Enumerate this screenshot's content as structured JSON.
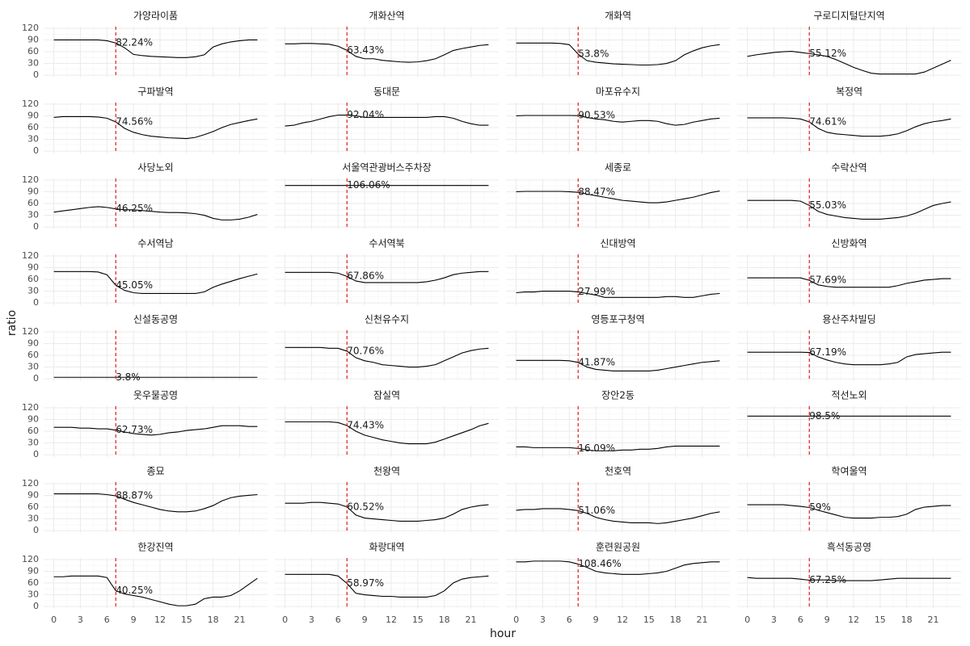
{
  "chart_data": {
    "type": "line",
    "x_label": "hour",
    "y_label": "ratio",
    "x": [
      0,
      1,
      2,
      3,
      4,
      5,
      6,
      7,
      8,
      9,
      10,
      11,
      12,
      13,
      14,
      15,
      16,
      17,
      18,
      19,
      20,
      21,
      22,
      23
    ],
    "xlim": [
      -1.15,
      24.15
    ],
    "xticks": [
      0,
      3,
      6,
      9,
      12,
      15,
      18,
      21
    ],
    "ylim": [
      -6,
      124
    ],
    "yticks": [
      0,
      30,
      60,
      90,
      120
    ],
    "grid": true,
    "line_color": "#000000",
    "vline": 7,
    "vline_color": "#e31a1c",
    "panels": [
      {
        "title": "가양라이품",
        "values": [
          90,
          90,
          90,
          90,
          90,
          90,
          88,
          82.24,
          70,
          53,
          50,
          48,
          47,
          46,
          45,
          45,
          47,
          52,
          72,
          80,
          85,
          88,
          90,
          90
        ],
        "label_value": 82.24,
        "label": "82.24%"
      },
      {
        "title": "개화산역",
        "values": [
          80,
          80,
          81,
          81,
          80,
          79,
          74,
          63.43,
          48,
          42,
          42,
          38,
          36,
          34,
          33,
          34,
          37,
          42,
          52,
          63,
          68,
          72,
          76,
          78
        ],
        "label_value": 63.43,
        "label": "63.43%"
      },
      {
        "title": "개화역",
        "values": [
          82,
          82,
          82,
          82,
          82,
          81,
          78,
          53.8,
          37,
          33,
          31,
          29,
          28,
          27,
          26,
          26,
          27,
          30,
          37,
          52,
          62,
          70,
          75,
          78
        ],
        "label_value": 53.8,
        "label": "53.8%"
      },
      {
        "title": "구로디지털단지역",
        "values": [
          48,
          52,
          55,
          58,
          60,
          61,
          58,
          55.12,
          52,
          48,
          40,
          30,
          20,
          12,
          5,
          3,
          3,
          3,
          3,
          3,
          8,
          18,
          28,
          38
        ],
        "label_value": 55.12,
        "label": "55.12%"
      },
      {
        "title": "구파발역",
        "values": [
          86,
          88,
          88,
          88,
          88,
          87,
          84,
          74.56,
          58,
          48,
          42,
          38,
          36,
          34,
          33,
          32,
          35,
          42,
          50,
          60,
          68,
          73,
          78,
          82
        ],
        "label_value": 74.56,
        "label": "74.56%"
      },
      {
        "title": "동대문",
        "values": [
          64,
          66,
          72,
          76,
          82,
          88,
          92,
          92.04,
          90,
          86,
          86,
          86,
          86,
          86,
          86,
          86,
          86,
          88,
          88,
          84,
          76,
          70,
          66,
          66
        ],
        "label_value": 92.04,
        "label": "92.04%"
      },
      {
        "title": "마포유수지",
        "values": [
          90,
          91,
          91,
          91,
          91,
          91,
          91,
          90.53,
          86,
          82,
          80,
          76,
          74,
          76,
          78,
          78,
          76,
          70,
          66,
          68,
          74,
          78,
          82,
          84
        ],
        "label_value": 90.53,
        "label": "90.53%"
      },
      {
        "title": "복정역",
        "values": [
          85,
          85,
          85,
          85,
          85,
          84,
          82,
          74.61,
          58,
          48,
          44,
          42,
          40,
          38,
          38,
          38,
          40,
          44,
          52,
          62,
          70,
          75,
          78,
          82
        ],
        "label_value": 74.61,
        "label": "74.61%"
      },
      {
        "title": "사당노외",
        "values": [
          38,
          41,
          44,
          47,
          50,
          52,
          50,
          46.25,
          44,
          44,
          42,
          40,
          38,
          37,
          37,
          36,
          34,
          30,
          22,
          18,
          18,
          20,
          25,
          32
        ],
        "label_value": 46.25,
        "label": "46.25%"
      },
      {
        "title": "서울역관광버스주차장",
        "values": [
          106.06,
          106.06,
          106.06,
          106.06,
          106.06,
          106.06,
          106.06,
          106.06,
          106.06,
          106.06,
          106.06,
          106.06,
          106.06,
          106.06,
          106.06,
          106.06,
          106.06,
          106.06,
          106.06,
          106.06,
          106.06,
          106.06,
          106.06,
          106.06
        ],
        "label_value": 106.06,
        "label": "106.06%"
      },
      {
        "title": "세종로",
        "values": [
          90,
          91,
          91,
          91,
          91,
          91,
          90,
          88.47,
          84,
          80,
          76,
          72,
          68,
          66,
          64,
          62,
          62,
          64,
          68,
          72,
          76,
          82,
          88,
          92
        ],
        "label_value": 88.47,
        "label": "88.47%"
      },
      {
        "title": "수락산역",
        "values": [
          68,
          68,
          68,
          68,
          68,
          68,
          66,
          55.03,
          40,
          32,
          28,
          24,
          22,
          20,
          20,
          20,
          22,
          24,
          28,
          35,
          45,
          55,
          60,
          64
        ],
        "label_value": 55.03,
        "label": "55.03%"
      },
      {
        "title": "수서역남",
        "values": [
          80,
          80,
          80,
          80,
          80,
          79,
          72,
          45.05,
          32,
          26,
          24,
          24,
          24,
          24,
          24,
          24,
          24,
          28,
          40,
          48,
          55,
          62,
          68,
          74
        ],
        "label_value": 45.05,
        "label": "45.05%"
      },
      {
        "title": "수서역북",
        "values": [
          78,
          78,
          78,
          78,
          78,
          78,
          76,
          67.86,
          56,
          52,
          52,
          52,
          52,
          52,
          52,
          52,
          54,
          58,
          64,
          72,
          76,
          78,
          80,
          80
        ],
        "label_value": 67.86,
        "label": "67.86%"
      },
      {
        "title": "신대방역",
        "values": [
          26,
          28,
          28,
          30,
          30,
          30,
          30,
          27.99,
          24,
          20,
          14,
          14,
          14,
          14,
          14,
          14,
          14,
          16,
          16,
          14,
          14,
          18,
          22,
          24
        ],
        "label_value": 27.99,
        "label": "27.99%"
      },
      {
        "title": "신방화역",
        "values": [
          64,
          64,
          64,
          64,
          64,
          64,
          64,
          57.69,
          46,
          42,
          40,
          40,
          40,
          40,
          40,
          40,
          40,
          44,
          50,
          54,
          58,
          60,
          62,
          62
        ],
        "label_value": 57.69,
        "label": "57.69%"
      },
      {
        "title": "신설동공영",
        "values": [
          3.8,
          3.8,
          3.8,
          3.8,
          3.8,
          3.8,
          3.8,
          3.8,
          3.8,
          3.8,
          3.8,
          3.8,
          3.8,
          3.8,
          3.8,
          3.8,
          3.8,
          3.8,
          3.8,
          3.8,
          3.8,
          3.8,
          3.8,
          3.8
        ],
        "label_value": 3.8,
        "label": "3.8%"
      },
      {
        "title": "신천유수지",
        "values": [
          80,
          80,
          80,
          80,
          80,
          78,
          78,
          70.76,
          54,
          46,
          42,
          36,
          34,
          32,
          30,
          30,
          32,
          36,
          46,
          56,
          66,
          72,
          76,
          78
        ],
        "label_value": 70.76,
        "label": "70.76%"
      },
      {
        "title": "영등포구청역",
        "values": [
          47,
          47,
          47,
          47,
          47,
          47,
          46,
          41.87,
          30,
          24,
          22,
          20,
          20,
          20,
          20,
          20,
          22,
          26,
          30,
          34,
          38,
          42,
          44,
          46
        ],
        "label_value": 41.87,
        "label": "41.87%"
      },
      {
        "title": "용산주차빌딩",
        "values": [
          68,
          68,
          68,
          68,
          68,
          68,
          68,
          67.19,
          56,
          48,
          42,
          38,
          36,
          36,
          36,
          36,
          38,
          42,
          56,
          62,
          64,
          66,
          68,
          68
        ],
        "label_value": 67.19,
        "label": "67.19%"
      },
      {
        "title": "웃우물공영",
        "values": [
          70,
          70,
          70,
          68,
          68,
          66,
          66,
          62.73,
          58,
          54,
          52,
          50,
          52,
          56,
          58,
          62,
          64,
          66,
          70,
          74,
          74,
          74,
          72,
          72
        ],
        "label_value": 62.73,
        "label": "62.73%"
      },
      {
        "title": "잠실역",
        "values": [
          84,
          84,
          84,
          84,
          84,
          84,
          82,
          74.43,
          60,
          50,
          44,
          38,
          34,
          30,
          28,
          28,
          28,
          32,
          40,
          48,
          56,
          64,
          74,
          80
        ],
        "label_value": 74.43,
        "label": "74.43%"
      },
      {
        "title": "장안2동",
        "values": [
          20,
          20,
          18,
          18,
          18,
          18,
          18,
          16.09,
          12,
          10,
          10,
          10,
          12,
          12,
          14,
          14,
          16,
          20,
          22,
          22,
          22,
          22,
          22,
          22
        ],
        "label_value": 16.09,
        "label": "16.09%"
      },
      {
        "title": "적선노외",
        "values": [
          98.5,
          98.5,
          98.5,
          98.5,
          98.5,
          98.5,
          98.5,
          98.5,
          98.5,
          98.5,
          98.5,
          98.5,
          98.5,
          98.5,
          98.5,
          98.5,
          98.5,
          98.5,
          98.5,
          98.5,
          98.5,
          98.5,
          98.5,
          98.5
        ],
        "label_value": 98.5,
        "label": "98.5%"
      },
      {
        "title": "종묘",
        "values": [
          94,
          94,
          94,
          94,
          94,
          94,
          92,
          88.87,
          80,
          72,
          66,
          60,
          54,
          50,
          48,
          48,
          50,
          56,
          64,
          76,
          84,
          88,
          90,
          92
        ],
        "label_value": 88.87,
        "label": "88.87%"
      },
      {
        "title": "천왕역",
        "values": [
          70,
          70,
          70,
          72,
          72,
          70,
          68,
          60.52,
          40,
          32,
          30,
          28,
          26,
          24,
          24,
          24,
          26,
          28,
          32,
          42,
          54,
          60,
          64,
          66
        ],
        "label_value": 60.52,
        "label": "60.52%"
      },
      {
        "title": "천호역",
        "values": [
          52,
          54,
          54,
          56,
          56,
          56,
          54,
          51.06,
          44,
          34,
          28,
          24,
          22,
          20,
          20,
          20,
          18,
          20,
          24,
          28,
          32,
          38,
          44,
          48
        ],
        "label_value": 51.06,
        "label": "51.06%"
      },
      {
        "title": "학여울역",
        "values": [
          66,
          66,
          66,
          66,
          66,
          64,
          62,
          59,
          52,
          46,
          40,
          34,
          32,
          32,
          32,
          34,
          34,
          36,
          42,
          54,
          60,
          62,
          64,
          64
        ],
        "label_value": 59,
        "label": "59%"
      },
      {
        "title": "한강진역",
        "values": [
          76,
          76,
          78,
          78,
          78,
          78,
          74,
          40.25,
          32,
          28,
          24,
          18,
          12,
          6,
          2,
          2,
          6,
          20,
          24,
          24,
          28,
          40,
          56,
          72
        ],
        "label_value": 40.25,
        "label": "40.25%"
      },
      {
        "title": "화랑대역",
        "values": [
          82,
          82,
          82,
          82,
          82,
          82,
          78,
          58.97,
          34,
          30,
          28,
          26,
          26,
          24,
          24,
          24,
          24,
          28,
          40,
          60,
          70,
          74,
          76,
          78
        ],
        "label_value": 58.97,
        "label": "58.97%"
      },
      {
        "title": "훈련원공원",
        "values": [
          114,
          114,
          116,
          116,
          116,
          116,
          114,
          108.46,
          100,
          90,
          86,
          84,
          82,
          82,
          82,
          84,
          86,
          90,
          98,
          106,
          110,
          112,
          114,
          114
        ],
        "label_value": 108.46,
        "label": "108.46%"
      },
      {
        "title": "흑석동공영",
        "values": [
          74,
          72,
          72,
          72,
          72,
          72,
          70,
          67.25,
          68,
          68,
          66,
          66,
          66,
          66,
          66,
          68,
          70,
          72,
          72,
          72,
          72,
          72,
          72,
          72
        ],
        "label_value": 67.25,
        "label": "67.25%"
      }
    ]
  }
}
